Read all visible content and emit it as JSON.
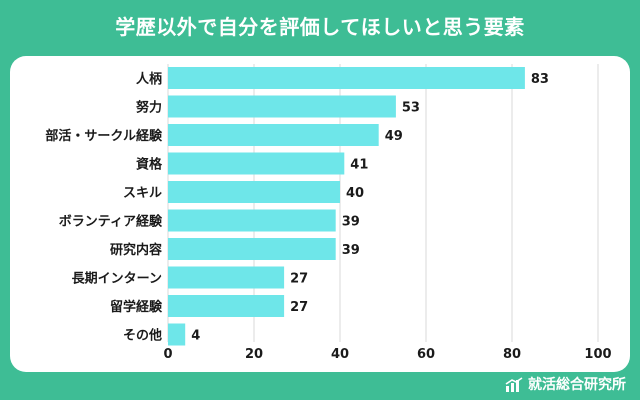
{
  "title": "学歴以外で自分を評価してほしいと思う要素",
  "brand": {
    "name": "就活総合研究所",
    "icon": "bar-chart-icon"
  },
  "colors": {
    "background": "#3ebd95",
    "bar": "#6ee6e9",
    "grid": "#d8d8d8",
    "text": "#1a1a1a"
  },
  "chart_data": {
    "type": "bar",
    "orientation": "horizontal",
    "title": "学歴以外で自分を評価してほしいと思う要素",
    "categories": [
      "人柄",
      "努力",
      "部活・サークル経験",
      "資格",
      "スキル",
      "ボランティア経験",
      "研究内容",
      "長期インターン",
      "留学経験",
      "その他"
    ],
    "values": [
      83,
      53,
      49,
      41,
      40,
      39,
      39,
      27,
      27,
      4
    ],
    "xlim": [
      0,
      100
    ],
    "xticks": [
      0,
      20,
      40,
      60,
      80,
      100
    ],
    "grid": true,
    "legend": "none",
    "data_labels": true
  }
}
